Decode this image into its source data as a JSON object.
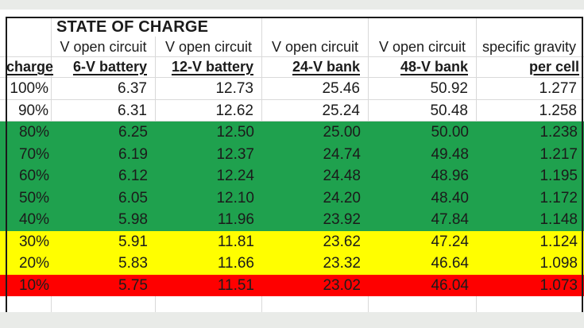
{
  "chart_data": {
    "type": "table",
    "title": "STATE OF CHARGE",
    "group_headers": [
      "",
      "V open circuit",
      "V open circuit",
      "V open circuit",
      "V open circuit",
      "specific gravity"
    ],
    "columns": [
      "charge",
      "6-V battery",
      "12-V battery",
      "24-V bank",
      "48-V bank",
      "per cell"
    ],
    "rows": [
      {
        "zone": "white",
        "cells": [
          "100%",
          "6.37",
          "12.73",
          "25.46",
          "50.92",
          "1.277"
        ]
      },
      {
        "zone": "white",
        "cells": [
          "90%",
          "6.31",
          "12.62",
          "25.24",
          "50.48",
          "1.258"
        ]
      },
      {
        "zone": "green",
        "cells": [
          "80%",
          "6.25",
          "12.50",
          "25.00",
          "50.00",
          "1.238"
        ]
      },
      {
        "zone": "green",
        "cells": [
          "70%",
          "6.19",
          "12.37",
          "24.74",
          "49.48",
          "1.217"
        ]
      },
      {
        "zone": "green",
        "cells": [
          "60%",
          "6.12",
          "12.24",
          "24.48",
          "48.96",
          "1.195"
        ]
      },
      {
        "zone": "green",
        "cells": [
          "50%",
          "6.05",
          "12.10",
          "24.20",
          "48.40",
          "1.172"
        ]
      },
      {
        "zone": "green",
        "cells": [
          "40%",
          "5.98",
          "11.96",
          "23.92",
          "47.84",
          "1.148"
        ]
      },
      {
        "zone": "yellow",
        "cells": [
          "30%",
          "5.91",
          "11.81",
          "23.62",
          "47.24",
          "1.124"
        ]
      },
      {
        "zone": "yellow",
        "cells": [
          "20%",
          "5.83",
          "11.66",
          "23.32",
          "46.64",
          "1.098"
        ]
      },
      {
        "zone": "red",
        "cells": [
          "10%",
          "5.75",
          "11.51",
          "23.02",
          "46.04",
          "1.073"
        ]
      }
    ],
    "zone_colors": {
      "white": "#ffffff",
      "green": "#1fa14e",
      "yellow": "#fffe00",
      "red": "#fe0000"
    }
  }
}
